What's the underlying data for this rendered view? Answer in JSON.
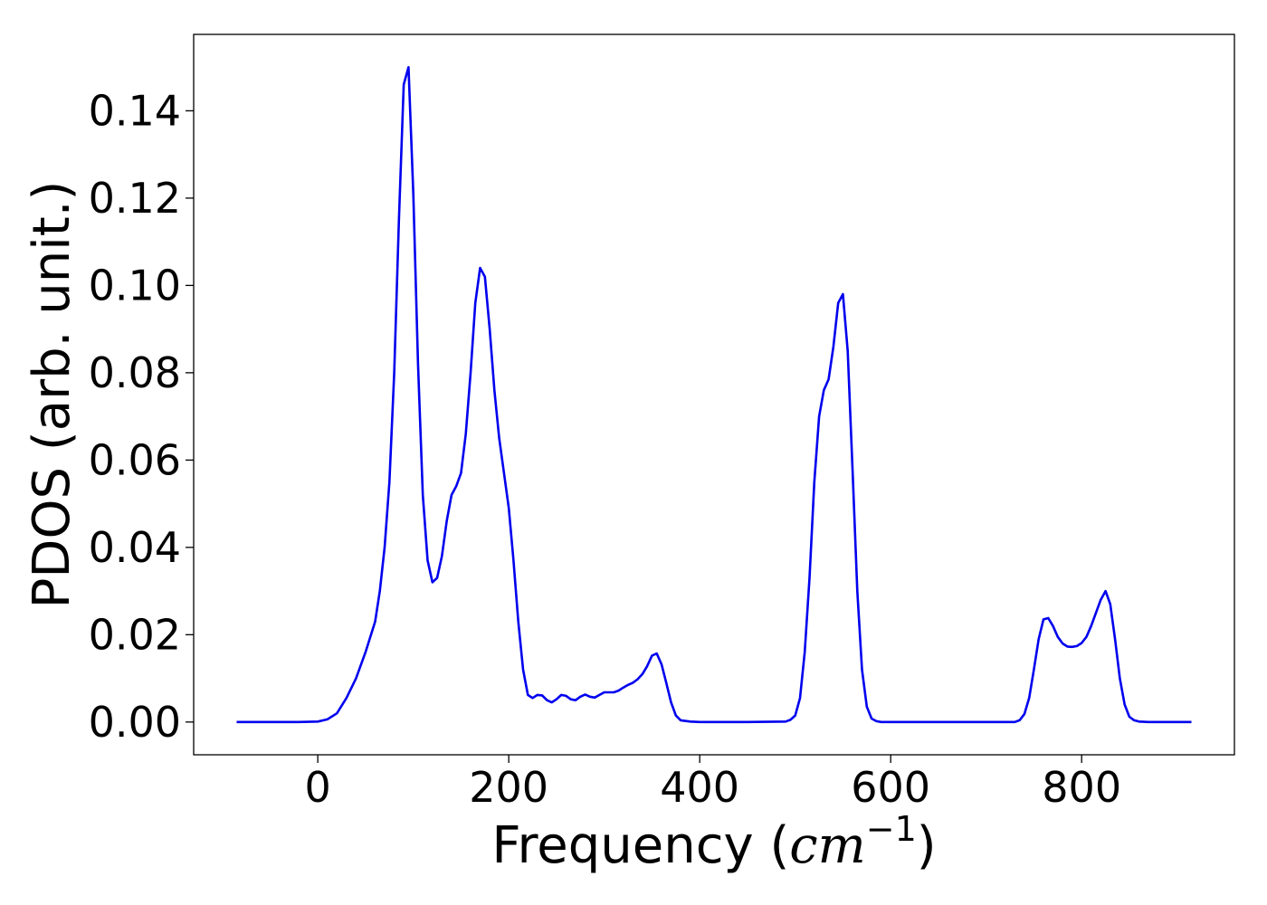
{
  "chart_data": {
    "type": "line",
    "title": "",
    "xlabel_main": "Frequency (",
    "xlabel_math": "cm",
    "xlabel_sup": "−1",
    "xlabel_close": ")",
    "ylabel": "PDOS (arb. unit.)",
    "xlim": [
      -130,
      960
    ],
    "ylim": [
      -0.0075,
      0.1575
    ],
    "xticks": [
      0,
      200,
      400,
      600,
      800
    ],
    "xtick_labels": [
      "0",
      "200",
      "400",
      "600",
      "800"
    ],
    "yticks": [
      0.0,
      0.02,
      0.04,
      0.06,
      0.08,
      0.1,
      0.12,
      0.14
    ],
    "ytick_labels": [
      "0.00",
      "0.02",
      "0.04",
      "0.06",
      "0.08",
      "0.10",
      "0.12",
      "0.14"
    ],
    "grid": false,
    "legend": "none",
    "line_color": "#0000ee",
    "series": [
      {
        "x": [
          -85,
          -60,
          -40,
          -20,
          0,
          10,
          20,
          30,
          40,
          50,
          60,
          65,
          70,
          75,
          80,
          85,
          90,
          95,
          100,
          105,
          110,
          115,
          120,
          125,
          130,
          135,
          140,
          145,
          150,
          155,
          160,
          165,
          170,
          175,
          180,
          185,
          190,
          195,
          200,
          205,
          210,
          215,
          220,
          225,
          230,
          235,
          240,
          245,
          250,
          255,
          260,
          265,
          270,
          275,
          280,
          285,
          290,
          295,
          300,
          305,
          310,
          315,
          320,
          325,
          330,
          335,
          340,
          345,
          350,
          355,
          360,
          365,
          370,
          375,
          380,
          390,
          400,
          450,
          490,
          495,
          500,
          505,
          510,
          515,
          520,
          525,
          530,
          535,
          540,
          545,
          550,
          555,
          560,
          565,
          570,
          575,
          580,
          585,
          590,
          600,
          650,
          700,
          730,
          735,
          740,
          745,
          750,
          755,
          760,
          765,
          770,
          775,
          780,
          785,
          790,
          795,
          800,
          805,
          810,
          815,
          820,
          825,
          830,
          835,
          840,
          845,
          850,
          855,
          860,
          870,
          900,
          915
        ],
        "y": [
          0,
          0,
          0,
          0,
          0.0001,
          0.0006,
          0.002,
          0.0055,
          0.01,
          0.016,
          0.023,
          0.03,
          0.04,
          0.055,
          0.08,
          0.115,
          0.146,
          0.15,
          0.121,
          0.082,
          0.052,
          0.037,
          0.032,
          0.033,
          0.038,
          0.046,
          0.052,
          0.054,
          0.057,
          0.066,
          0.08,
          0.096,
          0.104,
          0.102,
          0.09,
          0.076,
          0.065,
          0.057,
          0.049,
          0.037,
          0.023,
          0.012,
          0.0062,
          0.0055,
          0.0062,
          0.0061,
          0.005,
          0.0045,
          0.0052,
          0.0062,
          0.006,
          0.0052,
          0.005,
          0.0058,
          0.0063,
          0.0058,
          0.0056,
          0.0062,
          0.0068,
          0.0068,
          0.0068,
          0.0072,
          0.0079,
          0.0085,
          0.009,
          0.0098,
          0.011,
          0.0128,
          0.0152,
          0.0157,
          0.0132,
          0.009,
          0.0045,
          0.0015,
          0.0004,
          0.0001,
          0,
          0,
          0.0001,
          0.0005,
          0.0015,
          0.0055,
          0.016,
          0.033,
          0.055,
          0.07,
          0.076,
          0.0785,
          0.086,
          0.096,
          0.098,
          0.085,
          0.058,
          0.03,
          0.012,
          0.0035,
          0.0008,
          0.0002,
          0,
          0,
          0,
          0,
          0,
          0.0004,
          0.0018,
          0.0055,
          0.012,
          0.019,
          0.0235,
          0.0238,
          0.022,
          0.0195,
          0.018,
          0.0173,
          0.0172,
          0.0174,
          0.0181,
          0.0195,
          0.022,
          0.025,
          0.028,
          0.03,
          0.027,
          0.019,
          0.01,
          0.004,
          0.0012,
          0.0004,
          0.0001,
          0,
          0,
          0
        ]
      }
    ]
  }
}
